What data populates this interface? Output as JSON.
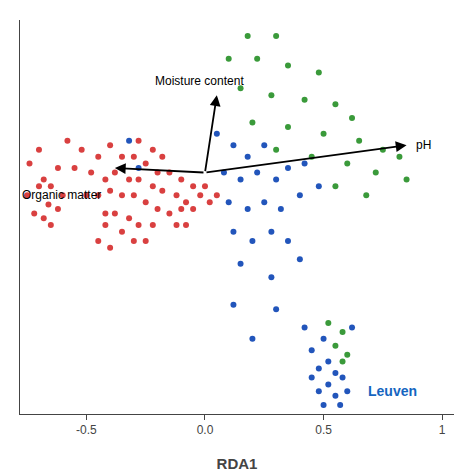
{
  "chart_data": {
    "type": "scatter",
    "xlabel": "RDA1",
    "xlim": [
      -0.78,
      1.05
    ],
    "ylim": [
      -0.78,
      0.95
    ],
    "xticks": [
      -0.5,
      {
        "value": 0.0,
        "label": "0.0"
      },
      0.5,
      {
        "value": 1.0,
        "label": "1"
      }
    ],
    "yticks": [],
    "tick_labels": "x",
    "grid": false,
    "series": [
      {
        "color": "#d94040",
        "values": [
          [
            -0.74,
            0.32
          ],
          [
            -0.7,
            0.38
          ],
          [
            -0.68,
            0.25
          ],
          [
            -0.65,
            0.22
          ],
          [
            -0.62,
            0.3
          ],
          [
            -0.6,
            0.18
          ],
          [
            -0.58,
            0.42
          ],
          [
            -0.55,
            0.3
          ],
          [
            -0.52,
            0.38
          ],
          [
            -0.5,
            0.18
          ],
          [
            -0.48,
            0.28
          ],
          [
            -0.75,
            0.18
          ],
          [
            -0.72,
            0.1
          ],
          [
            -0.7,
            0.22
          ],
          [
            -0.68,
            0.08
          ],
          [
            -0.66,
            0.14
          ],
          [
            -0.65,
            0.05
          ],
          [
            -0.62,
            0.12
          ],
          [
            -0.45,
            0.35
          ],
          [
            -0.42,
            0.25
          ],
          [
            -0.4,
            0.4
          ],
          [
            -0.38,
            0.28
          ],
          [
            -0.35,
            0.35
          ],
          [
            -0.32,
            0.25
          ],
          [
            -0.3,
            0.35
          ],
          [
            -0.28,
            0.42
          ],
          [
            -0.25,
            0.32
          ],
          [
            -0.22,
            0.38
          ],
          [
            -0.2,
            0.28
          ],
          [
            -0.18,
            0.35
          ],
          [
            -0.45,
            0.18
          ],
          [
            -0.42,
            0.1
          ],
          [
            -0.4,
            0.2
          ],
          [
            -0.38,
            0.1
          ],
          [
            -0.35,
            0.18
          ],
          [
            -0.32,
            0.08
          ],
          [
            -0.3,
            0.18
          ],
          [
            -0.28,
            0.25
          ],
          [
            -0.25,
            0.15
          ],
          [
            -0.22,
            0.22
          ],
          [
            -0.2,
            0.12
          ],
          [
            -0.18,
            0.2
          ],
          [
            -0.15,
            0.28
          ],
          [
            -0.12,
            0.18
          ],
          [
            -0.1,
            0.25
          ],
          [
            -0.08,
            0.15
          ],
          [
            -0.05,
            0.22
          ],
          [
            -0.45,
            -0.02
          ],
          [
            -0.42,
            0.05
          ],
          [
            -0.4,
            -0.05
          ],
          [
            -0.35,
            0.02
          ],
          [
            -0.3,
            -0.02
          ],
          [
            -0.28,
            0.05
          ],
          [
            -0.25,
            -0.02
          ],
          [
            -0.22,
            0.05
          ],
          [
            -0.15,
            0.1
          ],
          [
            -0.12,
            0.05
          ],
          [
            -0.1,
            0.12
          ],
          [
            -0.08,
            0.05
          ],
          [
            -0.05,
            0.12
          ],
          [
            -0.02,
            0.18
          ],
          [
            0.0,
            0.22
          ],
          [
            0.02,
            0.15
          ],
          [
            0.05,
            0.18
          ]
        ]
      },
      {
        "color": "#3a9a3a",
        "values": [
          [
            0.18,
            0.88
          ],
          [
            0.3,
            0.88
          ],
          [
            0.1,
            0.78
          ],
          [
            0.22,
            0.78
          ],
          [
            0.35,
            0.75
          ],
          [
            0.48,
            0.72
          ],
          [
            0.15,
            0.65
          ],
          [
            0.28,
            0.62
          ],
          [
            0.42,
            0.6
          ],
          [
            0.55,
            0.58
          ],
          [
            0.62,
            0.52
          ],
          [
            0.2,
            0.5
          ],
          [
            0.35,
            0.48
          ],
          [
            0.5,
            0.45
          ],
          [
            0.65,
            0.42
          ],
          [
            0.75,
            0.38
          ],
          [
            0.82,
            0.35
          ],
          [
            0.3,
            0.38
          ],
          [
            0.45,
            0.35
          ],
          [
            0.6,
            0.32
          ],
          [
            0.72,
            0.28
          ],
          [
            0.85,
            0.25
          ],
          [
            0.55,
            0.22
          ],
          [
            0.68,
            0.18
          ],
          [
            0.52,
            -0.38
          ],
          [
            0.58,
            -0.42
          ],
          [
            0.55,
            -0.48
          ],
          [
            0.6,
            -0.52
          ],
          [
            0.58,
            -0.55
          ]
        ]
      },
      {
        "color": "#2255bb",
        "values": [
          [
            -0.32,
            0.42
          ],
          [
            -0.28,
            0.3
          ],
          [
            0.05,
            0.45
          ],
          [
            0.12,
            0.4
          ],
          [
            0.18,
            0.35
          ],
          [
            0.25,
            0.4
          ],
          [
            0.08,
            0.28
          ],
          [
            0.15,
            0.25
          ],
          [
            0.22,
            0.28
          ],
          [
            0.3,
            0.25
          ],
          [
            0.35,
            0.3
          ],
          [
            0.42,
            0.32
          ],
          [
            0.1,
            0.15
          ],
          [
            0.18,
            0.12
          ],
          [
            0.25,
            0.15
          ],
          [
            0.32,
            0.12
          ],
          [
            0.4,
            0.18
          ],
          [
            0.48,
            0.22
          ],
          [
            0.12,
            0.02
          ],
          [
            0.2,
            -0.02
          ],
          [
            0.28,
            0.02
          ],
          [
            0.35,
            -0.02
          ],
          [
            0.15,
            -0.12
          ],
          [
            0.28,
            -0.18
          ],
          [
            0.4,
            -0.1
          ],
          [
            0.12,
            -0.3
          ],
          [
            0.3,
            -0.32
          ],
          [
            0.2,
            -0.45
          ],
          [
            0.42,
            -0.4
          ],
          [
            0.5,
            -0.45
          ],
          [
            0.45,
            -0.5
          ],
          [
            0.52,
            -0.55
          ],
          [
            0.48,
            -0.58
          ],
          [
            0.55,
            -0.6
          ],
          [
            0.45,
            -0.62
          ],
          [
            0.52,
            -0.65
          ],
          [
            0.58,
            -0.62
          ],
          [
            0.48,
            -0.68
          ],
          [
            0.55,
            -0.7
          ],
          [
            0.6,
            -0.68
          ],
          [
            0.5,
            -0.74
          ],
          [
            0.57,
            -0.74
          ],
          [
            0.62,
            -0.4
          ]
        ]
      }
    ],
    "arrows": [
      {
        "x0": 0.0,
        "y0": 0.28,
        "x1": 0.85,
        "y1": 0.4,
        "color": "#000000",
        "label": "pH",
        "label_x": 0.88,
        "label_y": 0.4
      },
      {
        "x0": 0.0,
        "y0": 0.28,
        "x1": 0.05,
        "y1": 0.62,
        "color": "#000000",
        "label": "Moisture content",
        "label_x": -0.22,
        "label_y": 0.68
      },
      {
        "x0": 0.0,
        "y0": 0.28,
        "x1": -0.38,
        "y1": 0.3,
        "color": "#000000",
        "label": "Organic matter",
        "label_x": -0.78,
        "label_y": 0.18
      }
    ],
    "annotations": [
      {
        "text": "Leuven",
        "x": 0.68,
        "y": -0.68,
        "color": "#1565c0"
      }
    ]
  }
}
